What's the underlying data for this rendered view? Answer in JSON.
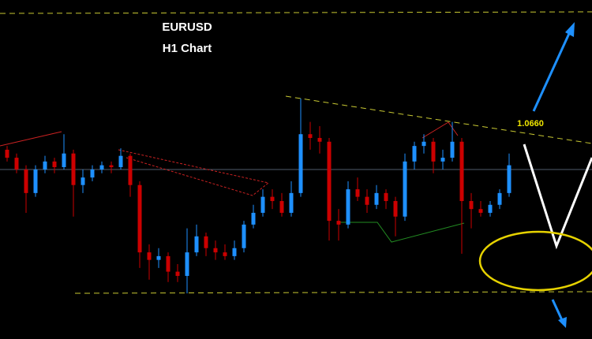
{
  "chart_data": {
    "type": "candlestick",
    "title": "EURUSD",
    "subtitle": "H1 Chart",
    "annotation": "1.0660",
    "up_color": "#1e90ff",
    "down_color": "#cc0000",
    "ylim": [
      1.0615,
      1.0687
    ],
    "open": [
      1.06552,
      1.06535,
      1.0651,
      1.0646,
      1.0651,
      1.06527,
      1.06515,
      1.06544,
      1.06477,
      1.06493,
      1.0651,
      1.06519,
      1.06515,
      1.06539,
      1.06477,
      1.06334,
      1.06318,
      1.06326,
      1.06293,
      1.06284,
      1.06334,
      1.06368,
      1.06343,
      1.06334,
      1.06326,
      1.06343,
      1.06393,
      1.06418,
      1.06452,
      1.06443,
      1.06418,
      1.0646,
      1.06585,
      1.06577,
      1.06569,
      1.06401,
      1.06393,
      1.06468,
      1.06452,
      1.06435,
      1.0646,
      1.06443,
      1.0641,
      1.06527,
      1.0656,
      1.06569,
      1.06527,
      1.06535,
      1.06569,
      1.06443,
      1.06426,
      1.06418,
      1.06435,
      1.0646
    ],
    "high": [
      1.0656,
      1.06544,
      1.06519,
      1.06519,
      1.06539,
      1.06535,
      1.06585,
      1.06552,
      1.0651,
      1.06519,
      1.06527,
      1.06527,
      1.06555,
      1.06544,
      1.06485,
      1.06351,
      1.06343,
      1.06334,
      1.06309,
      1.06385,
      1.06393,
      1.06376,
      1.06359,
      1.06351,
      1.06359,
      1.06401,
      1.06435,
      1.06468,
      1.06468,
      1.0646,
      1.06485,
      1.06661,
      1.06611,
      1.06602,
      1.06577,
      1.06426,
      1.06485,
      1.06493,
      1.06468,
      1.06477,
      1.06468,
      1.06452,
      1.06544,
      1.06569,
      1.06585,
      1.06577,
      1.06552,
      1.06611,
      1.06577,
      1.0646,
      1.06443,
      1.06443,
      1.06468,
      1.06544
    ],
    "low": [
      1.06527,
      1.06502,
      1.06418,
      1.06452,
      1.06502,
      1.06502,
      1.0651,
      1.0641,
      1.0646,
      1.06485,
      1.06502,
      1.06502,
      1.0651,
      1.06452,
      1.06301,
      1.06276,
      1.06301,
      1.06271,
      1.06271,
      1.06247,
      1.06326,
      1.06326,
      1.06318,
      1.06318,
      1.06318,
      1.06334,
      1.06385,
      1.0641,
      1.06426,
      1.0641,
      1.0641,
      1.06452,
      1.06552,
      1.06544,
      1.06359,
      1.06359,
      1.06385,
      1.06443,
      1.06418,
      1.06426,
      1.06426,
      1.06368,
      1.06401,
      1.0651,
      1.06544,
      1.06502,
      1.0651,
      1.06527,
      1.06331,
      1.06385,
      1.0641,
      1.0641,
      1.06426,
      1.06452
    ],
    "close": [
      1.06535,
      1.0651,
      1.0646,
      1.0651,
      1.06527,
      1.06515,
      1.06544,
      1.06477,
      1.06493,
      1.0651,
      1.06519,
      1.06515,
      1.06539,
      1.06477,
      1.06334,
      1.06318,
      1.06326,
      1.06293,
      1.06284,
      1.06334,
      1.06368,
      1.06343,
      1.06334,
      1.06326,
      1.06343,
      1.06393,
      1.06418,
      1.06452,
      1.06443,
      1.06418,
      1.0646,
      1.06585,
      1.06577,
      1.06569,
      1.06401,
      1.06393,
      1.06468,
      1.06452,
      1.06435,
      1.0646,
      1.06443,
      1.0641,
      1.06527,
      1.0656,
      1.06569,
      1.06527,
      1.06535,
      1.06569,
      1.06443,
      1.06426,
      1.06418,
      1.06435,
      1.0646,
      1.06519
    ]
  }
}
